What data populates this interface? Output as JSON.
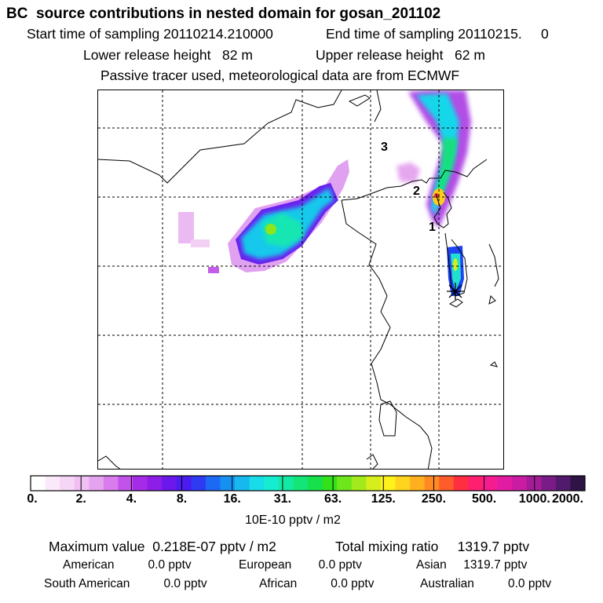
{
  "header": {
    "title": "BC  source contributions in nested domain for gosan_201102",
    "start": "Start time of sampling 20110214.210000",
    "end": "End time of sampling 20110215.     0",
    "lower": "Lower release height   82 m",
    "upper": "Upper release height   62 m",
    "note": "Passive tracer used, meteorological data are from ECMWF"
  },
  "map": {
    "markers": [
      "1",
      "2",
      "3"
    ]
  },
  "colorbar": {
    "unit": "10E-10 pptv / m2",
    "ticks": [
      "0.",
      "2.",
      "4.",
      "8.",
      "16.",
      "31.",
      "63.",
      "125.",
      "250.",
      "500.",
      "1000.",
      "2000."
    ],
    "colors": [
      "#ffffff",
      "#fbe9fb",
      "#f6d6f6",
      "#f0c0f3",
      "#e4a3ef",
      "#d97ced",
      "#c253ea",
      "#a62be6",
      "#8c1ee8",
      "#6a18ec",
      "#4b1cf0",
      "#2f3af3",
      "#1c6af3",
      "#1791f1",
      "#17b8ee",
      "#18dde9",
      "#15ecd0",
      "#14e9a4",
      "#14e578",
      "#16e04b",
      "#33e01c",
      "#6ee61c",
      "#a3ea1c",
      "#d6ee1c",
      "#fff11c",
      "#ffd41e",
      "#ffb020",
      "#ff8a24",
      "#ff5c2c",
      "#ff2e40",
      "#ff1e70",
      "#f51c90",
      "#e21ca2",
      "#c91ca2",
      "#a51c98",
      "#7a1c86",
      "#521a6c",
      "#2e1446"
    ]
  },
  "stats": {
    "max": "Maximum value  0.218E-07 pptv / m2",
    "total": "Total mixing ratio     1319.7 pptv",
    "american": "American          0.0 pptv",
    "european": "European        0.0 pptv",
    "asian": "Asian     1319.7 pptv",
    "south_american": "South American          0.0 pptv",
    "african": "African          0.0 pptv",
    "australian": "Australian          0.0 pptv"
  }
}
